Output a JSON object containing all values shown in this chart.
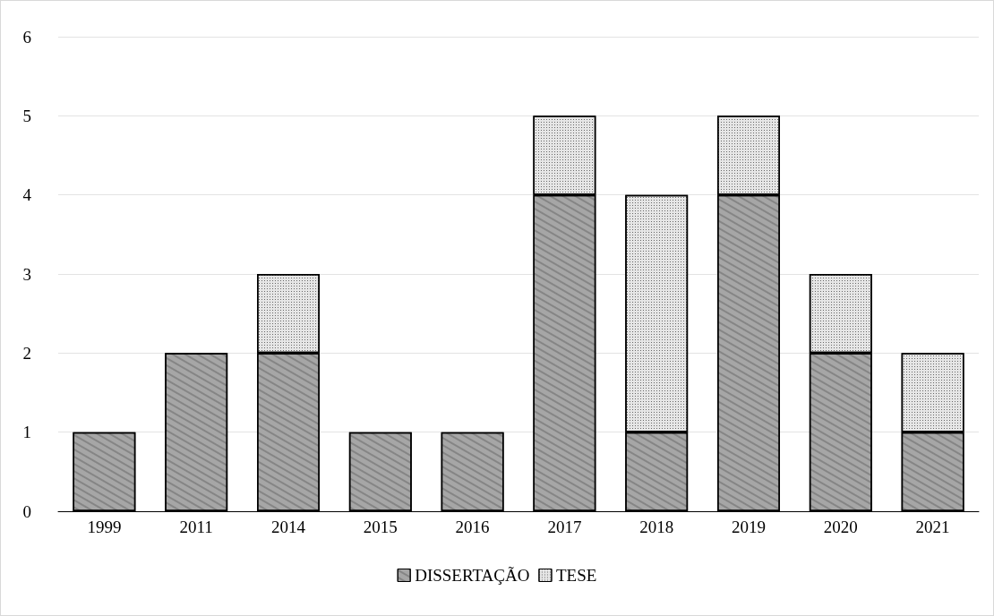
{
  "chart_data": {
    "type": "bar",
    "stacked": true,
    "categories": [
      "1999",
      "2011",
      "2014",
      "2015",
      "2016",
      "2017",
      "2018",
      "2019",
      "2020",
      "2021"
    ],
    "series": [
      {
        "name": "DISSERTAÇÃO",
        "color": "#a6a6a6",
        "values": [
          1,
          2,
          2,
          1,
          1,
          4,
          1,
          4,
          2,
          1
        ]
      },
      {
        "name": "TESE",
        "color": "#e6e6e6",
        "values": [
          null,
          null,
          1,
          null,
          null,
          1,
          3,
          1,
          1,
          1
        ]
      }
    ],
    "ylim": [
      0,
      6
    ],
    "yticks": [
      0,
      1,
      2,
      3,
      4,
      5,
      6
    ],
    "grid": "y",
    "legend": "bottom"
  }
}
